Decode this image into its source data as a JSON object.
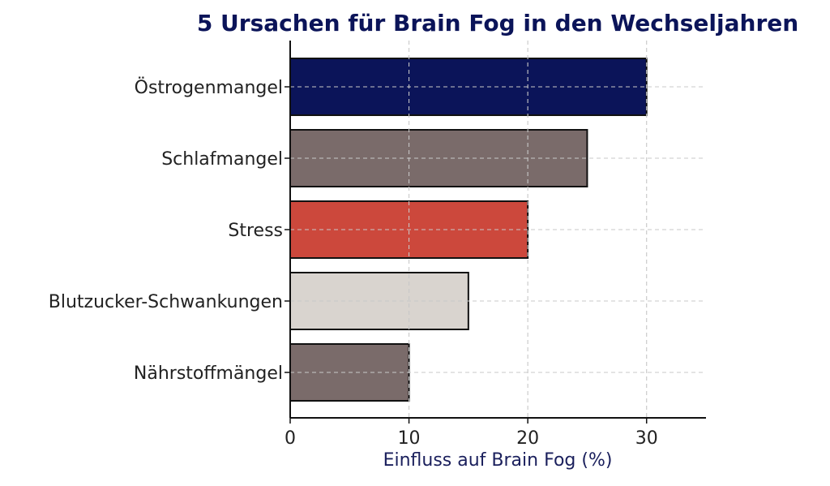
{
  "chart_data": {
    "type": "bar",
    "orientation": "horizontal",
    "title": "5 Ursachen für Brain Fog in den Wechseljahren",
    "xlabel": "Einfluss auf Brain Fog (%)",
    "ylabel": "",
    "categories": [
      "Östrogenmangel",
      "Schlafmangel",
      "Stress",
      "Blutzucker-Schwankungen",
      "Nährstoffmängel"
    ],
    "values": [
      30,
      25,
      20,
      15,
      10
    ],
    "bar_colors": [
      "#0b1459",
      "#7a6b6a",
      "#cc483c",
      "#d9d4cf",
      "#7a6b6a"
    ],
    "xlim": [
      0,
      35
    ],
    "xticks": [
      0,
      10,
      20,
      30
    ],
    "grid": true,
    "title_color": "#0b1459",
    "xlabel_color": "#1a1f5c"
  }
}
